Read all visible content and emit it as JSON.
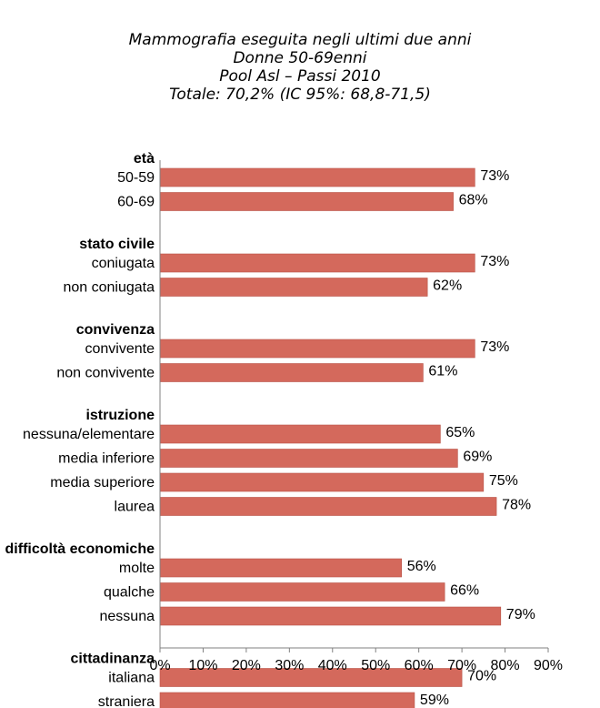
{
  "chart_data": {
    "type": "bar",
    "orientation": "horizontal",
    "title": [
      "Mammografia eseguita negli ultimi due anni",
      "Donne 50-69enni",
      "Pool Asl – Passi 2010",
      "Totale: 70,2% (IC 95%: 68,8-71,5)"
    ],
    "xlim": [
      0,
      90
    ],
    "x_ticks": [
      "0%",
      "10%",
      "20%",
      "30%",
      "40%",
      "50%",
      "60%",
      "70%",
      "80%",
      "90%"
    ],
    "bar_color": "#d4695c",
    "groups": [
      {
        "name": "età",
        "items": [
          {
            "label": "50-59",
            "value": 73,
            "value_label": "73%"
          },
          {
            "label": "60-69",
            "value": 68,
            "value_label": "68%"
          }
        ]
      },
      {
        "name": "stato civile",
        "items": [
          {
            "label": "coniugata",
            "value": 73,
            "value_label": "73%"
          },
          {
            "label": "non coniugata",
            "value": 62,
            "value_label": "62%"
          }
        ]
      },
      {
        "name": "convivenza",
        "items": [
          {
            "label": "convivente",
            "value": 73,
            "value_label": "73%"
          },
          {
            "label": "non convivente",
            "value": 61,
            "value_label": "61%"
          }
        ]
      },
      {
        "name": "istruzione",
        "items": [
          {
            "label": "nessuna/elementare",
            "value": 65,
            "value_label": "65%"
          },
          {
            "label": "media inferiore",
            "value": 69,
            "value_label": "69%"
          },
          {
            "label": "media superiore",
            "value": 75,
            "value_label": "75%"
          },
          {
            "label": "laurea",
            "value": 78,
            "value_label": "78%"
          }
        ]
      },
      {
        "name": "difficoltà economiche",
        "items": [
          {
            "label": "molte",
            "value": 56,
            "value_label": "56%"
          },
          {
            "label": "qualche",
            "value": 66,
            "value_label": "66%"
          },
          {
            "label": "nessuna",
            "value": 79,
            "value_label": "79%"
          }
        ]
      },
      {
        "name": "cittadinanza",
        "items": [
          {
            "label": "italiana",
            "value": 70,
            "value_label": "70%"
          },
          {
            "label": "straniera",
            "value": 59,
            "value_label": "59%"
          }
        ]
      }
    ]
  }
}
